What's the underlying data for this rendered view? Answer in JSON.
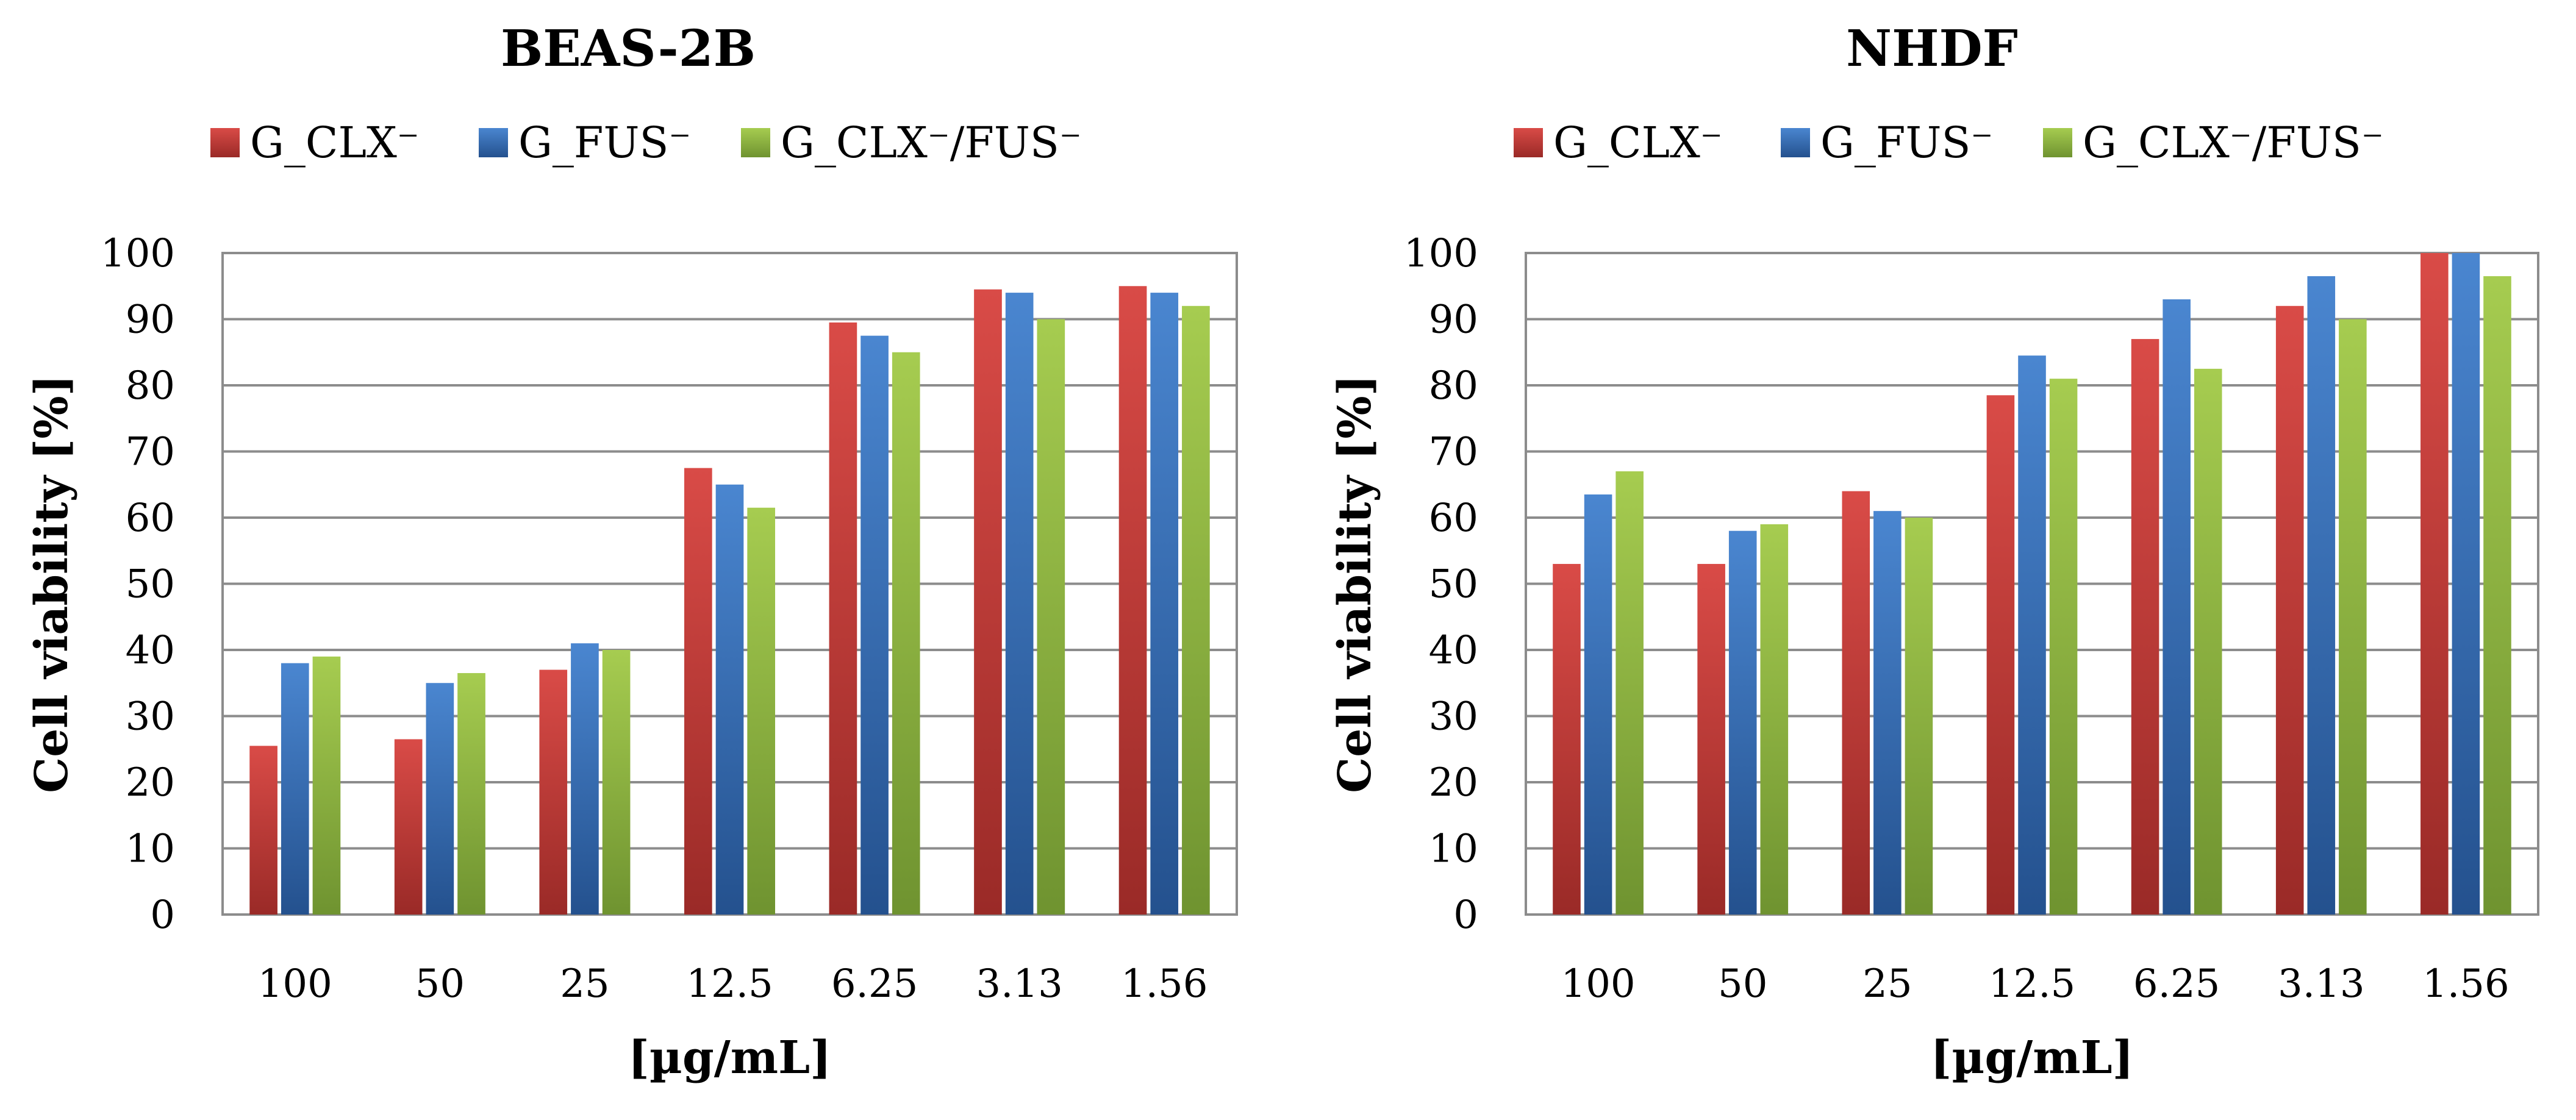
{
  "chart_data": [
    {
      "type": "bar",
      "title": "BEAS-2B",
      "xlabel": "[µg/mL]",
      "ylabel": "Cell viability [%]",
      "categories": [
        "100",
        "50",
        "25",
        "12.5",
        "6.25",
        "3.13",
        "1.56"
      ],
      "ylim": [
        0,
        100
      ],
      "yticks": [
        0,
        10,
        20,
        30,
        40,
        50,
        60,
        70,
        80,
        90,
        100
      ],
      "grid": true,
      "legend_position": "top",
      "series": [
        {
          "name": "G_CLX⁻",
          "color": "red",
          "values": [
            25.5,
            26.5,
            37,
            67.5,
            89.5,
            94.5,
            95
          ]
        },
        {
          "name": "G_FUS⁻",
          "color": "blue",
          "values": [
            38,
            35,
            41,
            65,
            87.5,
            94,
            94
          ]
        },
        {
          "name": "G_CLX⁻/FUS⁻",
          "color": "green",
          "values": [
            39,
            36.5,
            40,
            61.5,
            85,
            90,
            92
          ]
        }
      ]
    },
    {
      "type": "bar",
      "title": "NHDF",
      "xlabel": "[µg/mL]",
      "ylabel": "Cell viability [%]",
      "categories": [
        "100",
        "50",
        "25",
        "12.5",
        "6.25",
        "3.13",
        "1.56"
      ],
      "ylim": [
        0,
        100
      ],
      "yticks": [
        0,
        10,
        20,
        30,
        40,
        50,
        60,
        70,
        80,
        90,
        100
      ],
      "grid": true,
      "legend_position": "top",
      "series": [
        {
          "name": "G_CLX⁻",
          "color": "red",
          "values": [
            53,
            53,
            64,
            78.5,
            87,
            92,
            100
          ]
        },
        {
          "name": "G_FUS⁻",
          "color": "blue",
          "values": [
            63.5,
            58,
            61,
            84.5,
            93,
            96.5,
            100
          ]
        },
        {
          "name": "G_CLX⁻/FUS⁻",
          "color": "green",
          "values": [
            67,
            59,
            60,
            81,
            82.5,
            90,
            96.5
          ]
        }
      ]
    }
  ],
  "palette": {
    "red": {
      "light": "#d94b47",
      "dark": "#9a2a27"
    },
    "blue": {
      "light": "#4a86d0",
      "dark": "#24518e"
    },
    "green": {
      "light": "#a6cc50",
      "dark": "#6f9330"
    },
    "grid": "#8c8c8c",
    "axis": "#8c8c8c"
  }
}
